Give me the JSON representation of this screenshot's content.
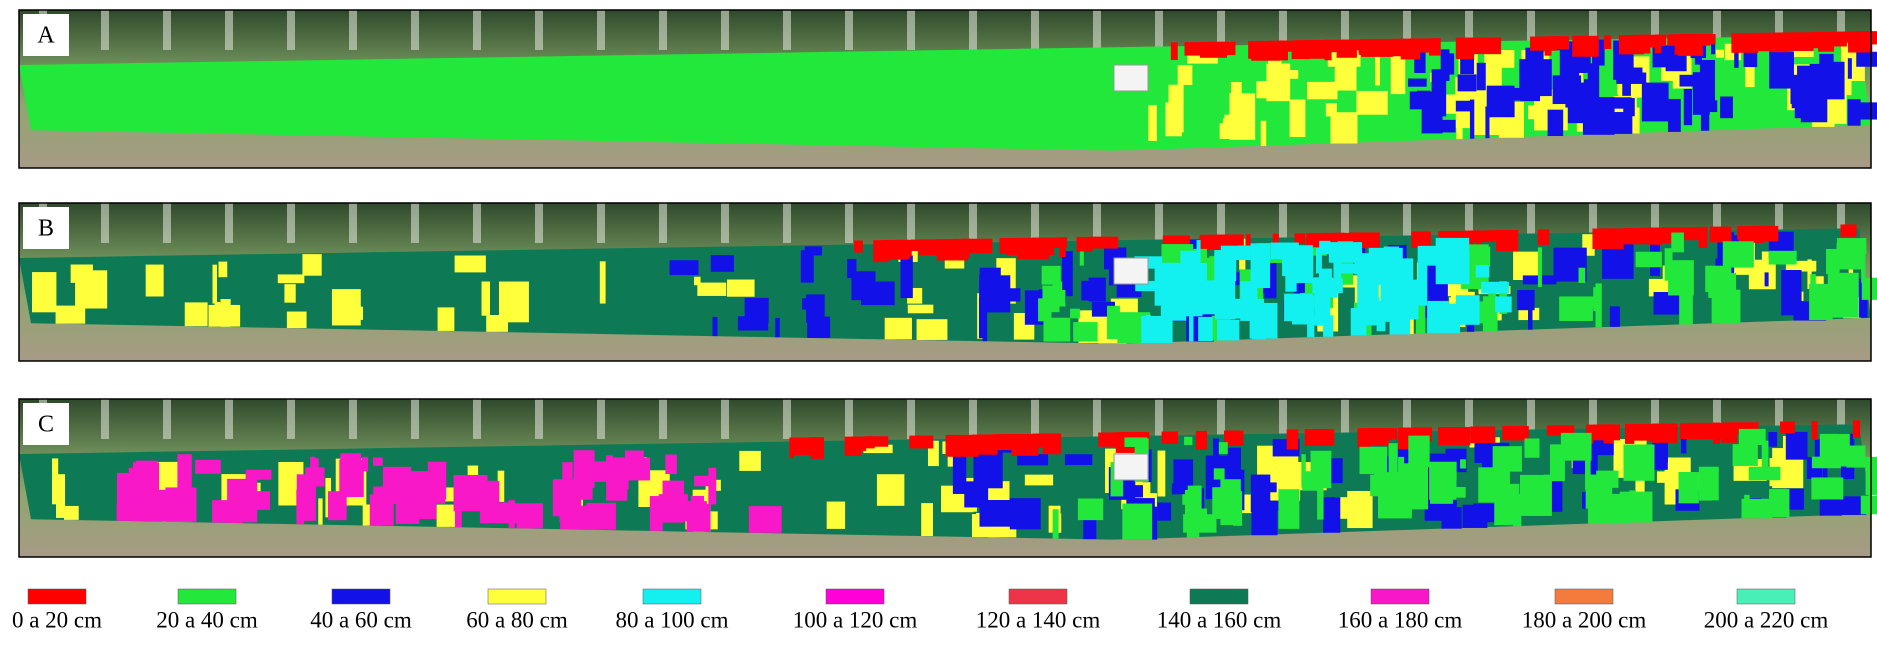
{
  "panels": [
    {
      "label": "A"
    },
    {
      "label": "B"
    },
    {
      "label": "C"
    }
  ],
  "legend": [
    {
      "label": "0 a 20 cm",
      "color": "#ff0000"
    },
    {
      "label": "20 a 40 cm",
      "color": "#22e83c"
    },
    {
      "label": "40 a 60 cm",
      "color": "#1212e8"
    },
    {
      "label": "60 a 80 cm",
      "color": "#ffff3c"
    },
    {
      "label": "80 a 100 cm",
      "color": "#12f0f0"
    },
    {
      "label": "100 a 120 cm",
      "color": "#ff00d8"
    },
    {
      "label": "120 a 140 cm",
      "color": "#ee3448"
    },
    {
      "label": "140 a 160 cm",
      "color": "#0e7a55"
    },
    {
      "label": "160 a 180 cm",
      "color": "#f818c8"
    },
    {
      "label": "180 a 200 cm",
      "color": "#f57b3c"
    },
    {
      "label": "200 a 220 cm",
      "color": "#48f0b8"
    }
  ]
}
